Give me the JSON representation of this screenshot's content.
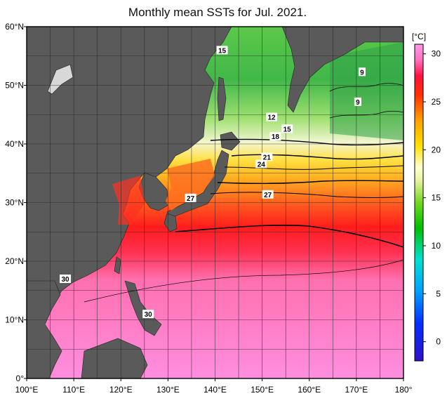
{
  "title": "Monthly mean SSTs for Jul. 2021.",
  "map": {
    "lon_range": [
      100,
      180
    ],
    "lat_range": [
      0,
      60
    ],
    "lon_ticks": [
      "100°E",
      "110°E",
      "120°E",
      "130°E",
      "140°E",
      "150°E",
      "160°E",
      "170°E",
      "180°"
    ],
    "lat_ticks": [
      "60°N",
      "50°N",
      "40°N",
      "30°N",
      "20°N",
      "10°N",
      "0°"
    ],
    "land_color": "#5a5a5a",
    "grid": true
  },
  "colorbar": {
    "unit": "[°C]",
    "range": [
      -2,
      31
    ],
    "tick_labels": [
      "30",
      "25",
      "20",
      "15",
      "10",
      "5",
      "0"
    ],
    "tick_values": [
      30,
      25,
      20,
      15,
      10,
      5,
      0
    ],
    "colors": [
      "#2b00c8",
      "#0030ff",
      "#00a0ff",
      "#00e0d0",
      "#00c800",
      "#80e000",
      "#e0f0a0",
      "#ffffe0",
      "#ffe000",
      "#ffa000",
      "#ff4000",
      "#ff0020",
      "#ff60a0",
      "#ff90e0"
    ]
  },
  "contour_labels": [
    {
      "text": "15",
      "lon": 141.5,
      "lat": 56.0
    },
    {
      "text": "9",
      "lon": 171.2,
      "lat": 52.3
    },
    {
      "text": "9",
      "lon": 170.3,
      "lat": 47.2
    },
    {
      "text": "12",
      "lon": 152.0,
      "lat": 44.6
    },
    {
      "text": "15",
      "lon": 155.3,
      "lat": 42.6
    },
    {
      "text": "18",
      "lon": 152.8,
      "lat": 41.3
    },
    {
      "text": "21",
      "lon": 151.0,
      "lat": 37.8
    },
    {
      "text": "24",
      "lon": 149.8,
      "lat": 36.6
    },
    {
      "text": "27",
      "lon": 134.8,
      "lat": 30.8
    },
    {
      "text": "27",
      "lon": 151.2,
      "lat": 31.4
    },
    {
      "text": "30",
      "lon": 108.2,
      "lat": 17.0
    },
    {
      "text": "30",
      "lon": 125.8,
      "lat": 11.0
    }
  ]
}
